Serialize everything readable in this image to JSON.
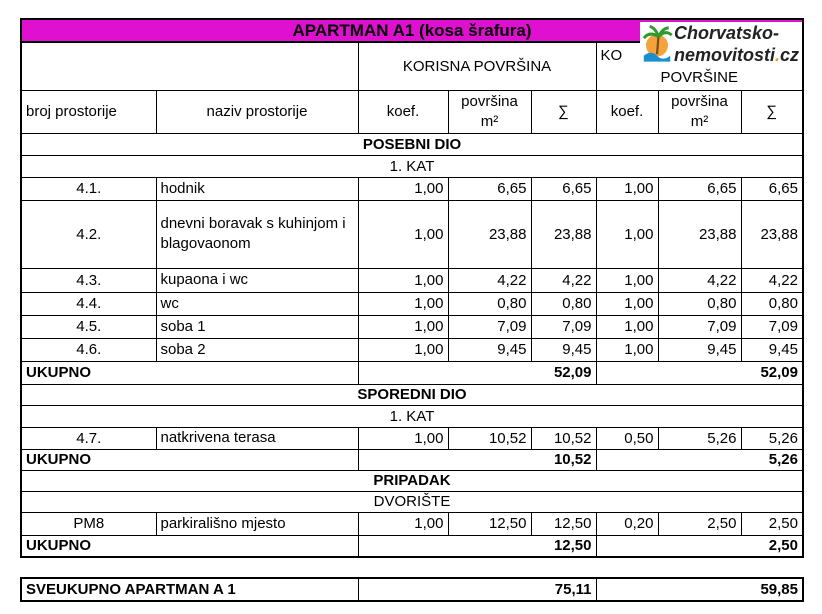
{
  "title": "APARTMAN A1 (kosa šrafura)",
  "logo": {
    "line1": "Chorvatsko-",
    "line2a": "nemovitosti",
    "dot": ".",
    "line2b": "cz"
  },
  "header": {
    "korisna": "KORISNA POVRŠINA",
    "ko": "KO",
    "povrsine": "POVRŠINE",
    "broj": "broj prostorije",
    "naziv": "naziv prostorije",
    "koef": "koef.",
    "povrsina": "površina m²",
    "sum": "∑"
  },
  "sections": {
    "posebni": "POSEBNI DIO",
    "kat1": "1. KAT",
    "rows1": [
      [
        "4.1.",
        "hodnik",
        "1,00",
        "6,65",
        "6,65",
        "1,00",
        "6,65",
        "6,65"
      ],
      [
        "4.2.",
        "dnevni boravak s kuhinjom i blagovaonom",
        "1,00",
        "23,88",
        "23,88",
        "1,00",
        "23,88",
        "23,88"
      ],
      [
        "4.3.",
        "kupaona i wc",
        "1,00",
        "4,22",
        "4,22",
        "1,00",
        "4,22",
        "4,22"
      ],
      [
        "4.4.",
        "wc",
        "1,00",
        "0,80",
        "0,80",
        "1,00",
        "0,80",
        "0,80"
      ],
      [
        "4.5.",
        "soba 1",
        "1,00",
        "7,09",
        "7,09",
        "1,00",
        "7,09",
        "7,09"
      ],
      [
        "4.6.",
        "soba 2",
        "1,00",
        "9,45",
        "9,45",
        "1,00",
        "9,45",
        "9,45"
      ]
    ],
    "ukupno": "UKUPNO",
    "u1": [
      "52,09",
      "52,09"
    ],
    "sporedni": "SPOREDNI DIO",
    "kat2": "1. KAT",
    "row7": [
      "4.7.",
      "natkrivena terasa",
      "1,00",
      "10,52",
      "10,52",
      "0,50",
      "5,26",
      "5,26"
    ],
    "u2": [
      "10,52",
      "5,26"
    ],
    "pripadak": "PRIPADAK",
    "dvoriste": "DVORIŠTE",
    "row8": [
      "PM8",
      "parkirališno mjesto",
      "1,00",
      "12,50",
      "12,50",
      "0,20",
      "2,50",
      "2,50"
    ],
    "u3": [
      "12,50",
      "2,50"
    ]
  },
  "total": {
    "label": "SVEUKUPNO APARTMAN A 1",
    "korisna": "75,11",
    "ukupna": "59,85"
  },
  "colors": {
    "title_bg": "#e010d0"
  }
}
